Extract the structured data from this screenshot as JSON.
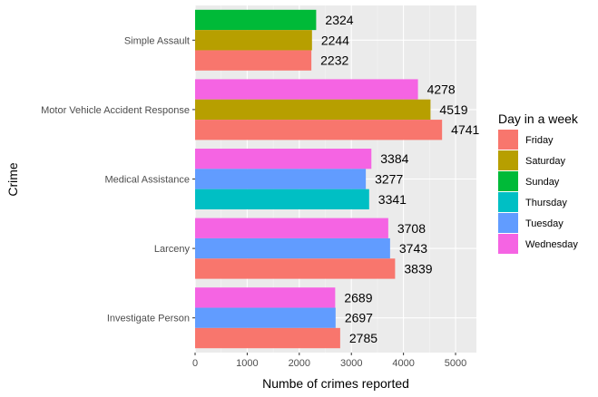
{
  "chart_data": {
    "type": "bar",
    "orientation": "horizontal",
    "xlabel": "Numbe of crimes reported",
    "ylabel": "Crime",
    "xlim": [
      0,
      5400
    ],
    "x_ticks": [
      0,
      1000,
      2000,
      3000,
      4000,
      5000
    ],
    "x_tick_labels": [
      "0",
      "1000",
      "2000",
      "3000",
      "4000",
      "5000"
    ],
    "grid": true,
    "legend_position": "right",
    "legend_title": "Day in a week",
    "legend": [
      {
        "name": "Friday",
        "color": "#F8766D"
      },
      {
        "name": "Saturday",
        "color": "#B79F00"
      },
      {
        "name": "Sunday",
        "color": "#00BA38"
      },
      {
        "name": "Thursday",
        "color": "#00BFC4"
      },
      {
        "name": "Tuesday",
        "color": "#619CFF"
      },
      {
        "name": "Wednesday",
        "color": "#F564E3"
      }
    ],
    "categories": [
      {
        "label": "Simple Assault",
        "bars": [
          {
            "day": "Sunday",
            "value": 2324,
            "label": "2324"
          },
          {
            "day": "Saturday",
            "value": 2244,
            "label": "2244"
          },
          {
            "day": "Friday",
            "value": 2232,
            "label": "2232"
          }
        ]
      },
      {
        "label": "Motor Vehicle Accident Response",
        "bars": [
          {
            "day": "Wednesday",
            "value": 4278,
            "label": "4278"
          },
          {
            "day": "Saturday",
            "value": 4519,
            "label": "4519"
          },
          {
            "day": "Friday",
            "value": 4741,
            "label": "4741"
          }
        ]
      },
      {
        "label": "Medical Assistance",
        "bars": [
          {
            "day": "Wednesday",
            "value": 3384,
            "label": "3384"
          },
          {
            "day": "Tuesday",
            "value": 3277,
            "label": "3277"
          },
          {
            "day": "Thursday",
            "value": 3341,
            "label": "3341"
          }
        ]
      },
      {
        "label": "Larceny",
        "bars": [
          {
            "day": "Wednesday",
            "value": 3708,
            "label": "3708"
          },
          {
            "day": "Tuesday",
            "value": 3743,
            "label": "3743"
          },
          {
            "day": "Friday",
            "value": 3839,
            "label": "3839"
          }
        ]
      },
      {
        "label": "Investigate Person",
        "bars": [
          {
            "day": "Wednesday",
            "value": 2689,
            "label": "2689"
          },
          {
            "day": "Tuesday",
            "value": 2697,
            "label": "2697"
          },
          {
            "day": "Friday",
            "value": 2785,
            "label": "2785"
          }
        ]
      }
    ]
  }
}
